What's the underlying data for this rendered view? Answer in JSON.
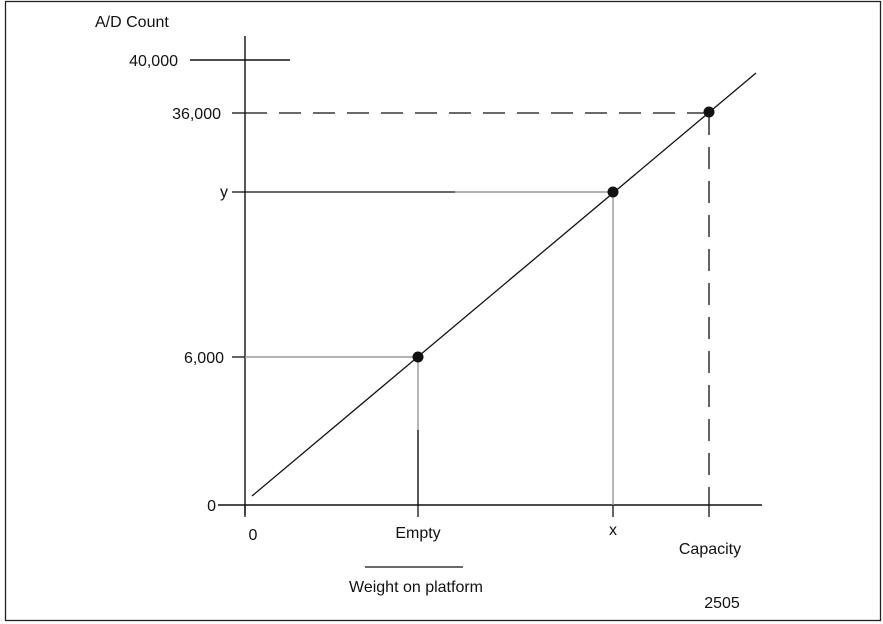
{
  "diagram": {
    "y_axis_title": "A/D Count",
    "x_axis_title": "Weight on platform",
    "figure_number": "2505",
    "y_labels": {
      "max": "40,000",
      "capacity": "36,000",
      "y": "y",
      "empty": "6,000",
      "zero": "0"
    },
    "x_labels": {
      "zero": "0",
      "empty": "Empty",
      "x": "x",
      "capacity": "Capacity"
    },
    "colors": {
      "line": "#111111",
      "guide_gray": "#9a9a9a",
      "frame": "#222222"
    }
  }
}
